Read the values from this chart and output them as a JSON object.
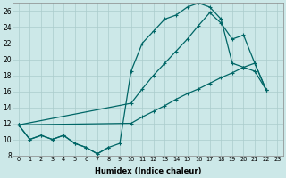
{
  "xlabel": "Humidex (Indice chaleur)",
  "bg_color": "#cce8e8",
  "grid_color": "#aacccc",
  "line_color": "#006666",
  "xlim": [
    -0.5,
    23.5
  ],
  "ylim": [
    8,
    27
  ],
  "yticks": [
    8,
    10,
    12,
    14,
    16,
    18,
    20,
    22,
    24,
    26
  ],
  "xticks": [
    0,
    1,
    2,
    3,
    4,
    5,
    6,
    7,
    8,
    9,
    10,
    11,
    12,
    13,
    14,
    15,
    16,
    17,
    18,
    19,
    20,
    21,
    22,
    23
  ],
  "line1_x": [
    0,
    1,
    2,
    3,
    4,
    5,
    6,
    7,
    8
  ],
  "line1_y": [
    11.8,
    10.0,
    10.5,
    10.0,
    10.5,
    9.5,
    9.0,
    8.2,
    9.0
  ],
  "line2_x": [
    0,
    1,
    2,
    3,
    4,
    5,
    6,
    7,
    8,
    9,
    10,
    11,
    12,
    13,
    14,
    15,
    16,
    17,
    18,
    19,
    20,
    21,
    22
  ],
  "line2_y": [
    11.8,
    10.0,
    10.5,
    10.0,
    10.5,
    9.5,
    9.0,
    8.2,
    9.0,
    9.5,
    18.5,
    22.0,
    23.5,
    25.0,
    25.5,
    26.5,
    27.0,
    26.5,
    25.0,
    19.5,
    19.0,
    18.5,
    16.2
  ],
  "line3_x": [
    0,
    10,
    11,
    12,
    13,
    14,
    15,
    16,
    17,
    18,
    19,
    20,
    21,
    22
  ],
  "line3_y": [
    11.8,
    12.0,
    12.8,
    13.5,
    14.2,
    15.0,
    15.7,
    16.3,
    17.0,
    17.7,
    18.3,
    19.0,
    19.5,
    16.2
  ],
  "line4_x": [
    0,
    10,
    11,
    12,
    13,
    14,
    15,
    16,
    17,
    18,
    19,
    20,
    21,
    22
  ],
  "line4_y": [
    11.8,
    14.5,
    16.3,
    18.0,
    19.5,
    21.0,
    22.5,
    24.2,
    25.8,
    24.5,
    22.5,
    23.0,
    19.5,
    16.2
  ]
}
